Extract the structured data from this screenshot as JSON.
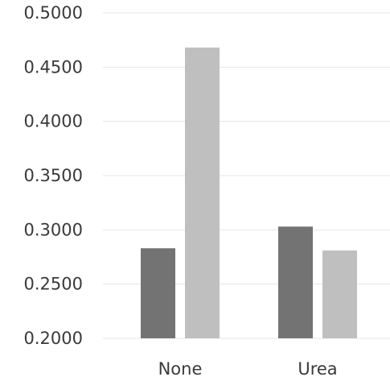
{
  "chart_data": {
    "type": "bar",
    "title": "",
    "xlabel": "",
    "ylabel": "",
    "categories": [
      "None",
      "Urea"
    ],
    "series": [
      {
        "values": [
          0.283,
          0.303
        ],
        "color": "#737373"
      },
      {
        "values": [
          0.468,
          0.281
        ],
        "color": "#bfbfbf"
      }
    ],
    "ylim": [
      0.2,
      0.5
    ],
    "yticks": [
      "0.2000",
      "0.2500",
      "0.3000",
      "0.3500",
      "0.4000",
      "0.4500",
      "0.5000"
    ],
    "grid": true,
    "legend": "none"
  }
}
